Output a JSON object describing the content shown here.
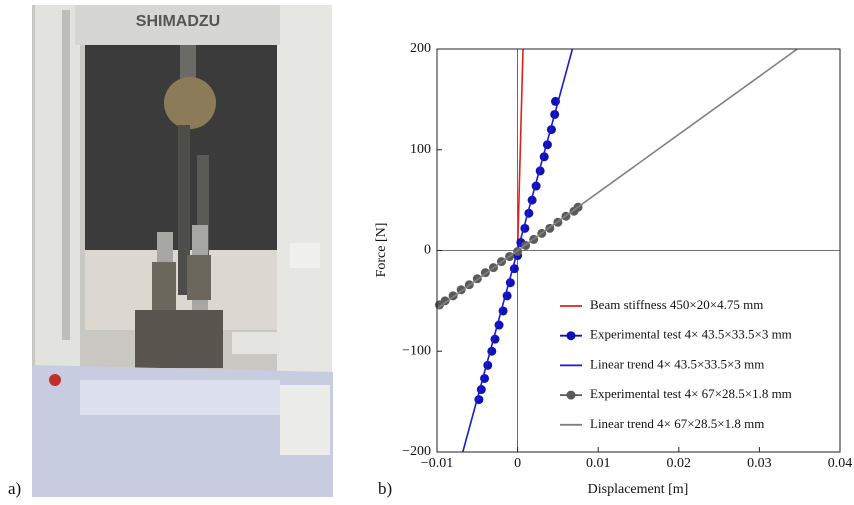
{
  "figure": {
    "panel_a": "a)",
    "panel_b": "b)",
    "photo_brand": "SHIMADZU"
  },
  "chart_data": {
    "type": "scatter",
    "xlabel": "Displacement [m]",
    "ylabel": "Force [N]",
    "xlim": [
      -0.01,
      0.04
    ],
    "ylim": [
      -200,
      200
    ],
    "xticks": [
      {
        "value": -0.01,
        "label": "−0.01"
      },
      0,
      0.01,
      0.02,
      0.03,
      0.04
    ],
    "yticks": [
      {
        "value": -200,
        "label": "−200"
      },
      {
        "value": -100,
        "label": "−100"
      },
      0,
      100,
      200
    ],
    "series": [
      {
        "name": "Beam stiffness 450×20×4.75 mm",
        "color": "#e0201b",
        "mode": "line",
        "x": [
          0,
          0.00067
        ],
        "y": [
          0,
          200
        ]
      },
      {
        "name": "Experimental test 4× 43.5×33.5×3 mm",
        "color": "#1010b8",
        "mode": "markers",
        "x": [
          -0.0048,
          -0.0045,
          -0.0041,
          -0.0037,
          -0.0032,
          -0.0028,
          -0.0023,
          -0.0018,
          -0.0013,
          -0.0009,
          -0.0004,
          0,
          0.0004,
          0.0009,
          0.0014,
          0.0018,
          0.0023,
          0.0028,
          0.0033,
          0.0037,
          0.0042,
          0.0046,
          0.0047
        ],
        "y": [
          -148,
          -138,
          -127,
          -114,
          -100,
          -88,
          -74,
          -60,
          -45,
          -32,
          -18,
          -5,
          8,
          22,
          37,
          50,
          64,
          79,
          93,
          105,
          120,
          135,
          148
        ]
      },
      {
        "name": "Linear trend 4× 43.5×33.5×3 mm",
        "color": "#1a1ad0",
        "mode": "line",
        "x": [
          -0.0068,
          0.0068
        ],
        "y": [
          -200,
          200
        ]
      },
      {
        "name": "Experimental test 4× 67×28.5×1.8 mm",
        "color": "#5a5a5a",
        "mode": "markers",
        "x": [
          -0.0097,
          -0.009,
          -0.008,
          -0.007,
          -0.006,
          -0.005,
          -0.004,
          -0.003,
          -0.002,
          -0.001,
          0,
          0.001,
          0.002,
          0.003,
          0.004,
          0.005,
          0.006,
          0.007,
          0.0075
        ],
        "y": [
          -54,
          -50,
          -45,
          -39,
          -34,
          -28,
          -22,
          -17,
          -11,
          -6,
          -1,
          5,
          11,
          17,
          22,
          28,
          34,
          39,
          43
        ]
      },
      {
        "name": "Linear trend 4× 67×28.5×1.8 mm",
        "color": "#808080",
        "mode": "line",
        "x": [
          -0.01,
          0.0347
        ],
        "y": [
          -57.7,
          200
        ]
      }
    ]
  }
}
